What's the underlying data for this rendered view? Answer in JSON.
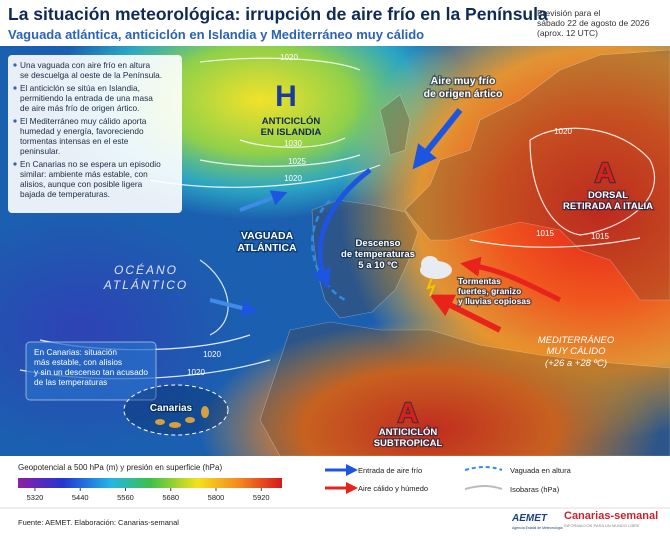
{
  "header": {
    "title": "La situación meteorológica: irrupción de aire frío en la Península",
    "subtitle": "Vaguada atlántica, anticiclón en Islandia y Mediterráneo muy cálido",
    "forecast": [
      "Previsión para el",
      "sábado 22 de agosto de 2026",
      "(aprox. 12 UTC)"
    ]
  },
  "info_box": {
    "items": [
      [
        "Una vaguada con aire frío en altura",
        "se descuelga al oeste de la Península."
      ],
      [
        "El anticiclón se sitúa en Islandia,",
        "permitiendo la entrada de una masa",
        "de aire más frío de origen ártico."
      ],
      [
        "El Mediterráneo muy cálido aporta",
        "humedad y energía, favoreciendo",
        "tormentas intensas en el este",
        "peninsular."
      ],
      [
        "En Canarias no se espera un episodio",
        "similar: ambiente más estable, con",
        "alisios, aunque con posible ligera",
        "bajada de temperaturas."
      ]
    ]
  },
  "canarias_box": [
    "En Canarias: situación",
    "más estable, con alisios",
    "y sin un descenso tan acusado",
    "de las temperaturas"
  ],
  "map_labels": {
    "high_iceland": {
      "symbol": "H",
      "text": [
        "ANTICICLÓN",
        "EN ISLANDIA"
      ]
    },
    "arctic_air": [
      "Aire muy frío",
      "de origen ártico"
    ],
    "trough": [
      "VAGUADA",
      "ATLÁNTICA"
    ],
    "temp_drop": [
      "Descenso",
      "de temperaturas",
      "5 a 10 ºC"
    ],
    "storms": [
      "Tormentas",
      "fuertes, granizo",
      "y lluvias copiosas"
    ],
    "ridge": {
      "symbol": "A",
      "text": [
        "DORSAL",
        "RETIRADA A ITALIA"
      ]
    },
    "ocean": [
      "OCÉANO",
      "ATLÁNTICO"
    ],
    "mediterranean": [
      "MEDITERRÁNEO",
      "MUY CÁLIDO",
      "(+26 a +28 ºC)"
    ],
    "subtropical_high": {
      "symbol": "A",
      "text": [
        "ANTICICLÓN",
        "SUBTROPICAL"
      ]
    },
    "canarias": "Canarias"
  },
  "isobar_labels": [
    1020,
    1030,
    1025,
    1020,
    1020,
    1015,
    1015,
    1020,
    1020
  ],
  "colorbar": {
    "title": "Geopotencial a 500 hPa (m) y presión en superficie (hPa)",
    "lim": [
      5275,
      5975
    ],
    "ticks": [
      5320,
      5440,
      5560,
      5680,
      5800,
      5920
    ]
  },
  "legend": [
    "Entrada de aire frío",
    "Aire cálido y húmedo",
    "Vaguada en altura",
    "Isobaras (hPa)"
  ],
  "footer": {
    "source": "Fuente: AEMET. Elaboración: Canarias-semanal",
    "aemet": "AEMET",
    "aemet_sub": "Agencia Estatal de Meteorología",
    "brand": "Canarias-semanal",
    "brand_sub": "INFORMACIÓN PARA UN MUNDO LIBRE"
  }
}
